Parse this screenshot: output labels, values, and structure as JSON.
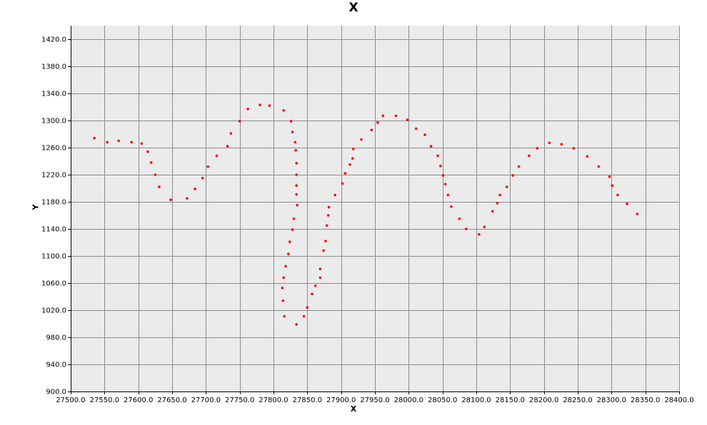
{
  "colors": {
    "plot_background": "#ebebeb",
    "grid": "#8c8c8c",
    "point": "#ff0000",
    "axis": "#000000"
  },
  "chart_data": {
    "type": "scatter",
    "title": "X",
    "xlabel": "X",
    "ylabel": "Y",
    "xlim": [
      27500.0,
      28400.0
    ],
    "ylim": [
      900.0,
      1440.0
    ],
    "xticks": [
      27500.0,
      27550.0,
      27600.0,
      27650.0,
      27700.0,
      27750.0,
      27800.0,
      27850.0,
      27900.0,
      27950.0,
      28000.0,
      28050.0,
      28100.0,
      28150.0,
      28200.0,
      28250.0,
      28300.0,
      28350.0,
      28400.0
    ],
    "xtick_labels": [
      "27500.0",
      "27550.0",
      "27600.0",
      "27650.0",
      "27700.0",
      "27750.0",
      "27800.0",
      "27850.0",
      "27900.0",
      "27950.0",
      "28000.0",
      "28050.0",
      "28100.0",
      "28150.0",
      "28200.0",
      "28250.0",
      "28300.0",
      "28350.0",
      "28400.0"
    ],
    "yticks": [
      900.0,
      940.0,
      980.0,
      1020.0,
      1060.0,
      1100.0,
      1140.0,
      1180.0,
      1220.0,
      1260.0,
      1300.0,
      1340.0,
      1380.0,
      1420.0
    ],
    "ytick_labels": [
      "900.0",
      "940.0",
      "980.0",
      "1020.0",
      "1060.0",
      "1100.0",
      "1140.0",
      "1180.0",
      "1220.0",
      "1260.0",
      "1300.0",
      "1340.0",
      "1380.0",
      "1420.0"
    ],
    "grid": true,
    "series": [
      {
        "points": [
          [
            27535,
            1274
          ],
          [
            27554,
            1268
          ],
          [
            27571,
            1270
          ],
          [
            27590,
            1268
          ],
          [
            27605,
            1266
          ],
          [
            27614,
            1254
          ],
          [
            27619,
            1238
          ],
          [
            27625,
            1220
          ],
          [
            27631,
            1202
          ],
          [
            27648,
            1183
          ],
          [
            27672,
            1185
          ],
          [
            27684,
            1199
          ],
          [
            27695,
            1215
          ],
          [
            27703,
            1232
          ],
          [
            27716,
            1248
          ],
          [
            27732,
            1262
          ],
          [
            27737,
            1281
          ],
          [
            27750,
            1299
          ],
          [
            27762,
            1317
          ],
          [
            27780,
            1323
          ],
          [
            27794,
            1322
          ],
          [
            27815,
            1315
          ],
          [
            27826,
            1299
          ],
          [
            27828,
            1283
          ],
          [
            27832,
            1268
          ],
          [
            27833,
            1256
          ],
          [
            27834,
            1237
          ],
          [
            27834,
            1220
          ],
          [
            27834,
            1204
          ],
          [
            27834,
            1191
          ],
          [
            27835,
            1175
          ],
          [
            27830,
            1155
          ],
          [
            27828,
            1139
          ],
          [
            27824,
            1121
          ],
          [
            27822,
            1103
          ],
          [
            27818,
            1085
          ],
          [
            27815,
            1068
          ],
          [
            27813,
            1053
          ],
          [
            27814,
            1034
          ],
          [
            27816,
            1011
          ],
          [
            27834,
            999
          ],
          [
            27845,
            1011
          ],
          [
            27850,
            1024
          ],
          [
            27857,
            1044
          ],
          [
            27862,
            1056
          ],
          [
            27869,
            1068
          ],
          [
            27869,
            1081
          ],
          [
            27874,
            1108
          ],
          [
            27877,
            1122
          ],
          [
            27879,
            1145
          ],
          [
            27881,
            1160
          ],
          [
            27882,
            1172
          ],
          [
            27891,
            1190
          ],
          [
            27902,
            1207
          ],
          [
            27906,
            1222
          ],
          [
            27913,
            1235
          ],
          [
            27917,
            1244
          ],
          [
            27918,
            1258
          ],
          [
            27930,
            1272
          ],
          [
            27945,
            1286
          ],
          [
            27954,
            1297
          ],
          [
            27962,
            1307
          ],
          [
            27981,
            1307
          ],
          [
            27998,
            1301
          ],
          [
            28011,
            1288
          ],
          [
            28024,
            1279
          ],
          [
            28033,
            1262
          ],
          [
            28043,
            1248
          ],
          [
            28047,
            1233
          ],
          [
            28051,
            1219
          ],
          [
            28054,
            1206
          ],
          [
            28058,
            1190
          ],
          [
            28063,
            1173
          ],
          [
            28075,
            1155
          ],
          [
            28085,
            1140
          ],
          [
            28104,
            1132
          ],
          [
            28112,
            1143
          ],
          [
            28124,
            1166
          ],
          [
            28131,
            1178
          ],
          [
            28135,
            1190
          ],
          [
            28145,
            1202
          ],
          [
            28154,
            1219
          ],
          [
            28163,
            1232
          ],
          [
            28178,
            1248
          ],
          [
            28190,
            1259
          ],
          [
            28208,
            1267
          ],
          [
            28226,
            1265
          ],
          [
            28244,
            1259
          ],
          [
            28264,
            1247
          ],
          [
            28281,
            1232
          ],
          [
            28297,
            1217
          ],
          [
            28301,
            1204
          ],
          [
            28309,
            1190
          ],
          [
            28323,
            1177
          ],
          [
            28338,
            1162
          ]
        ]
      }
    ]
  }
}
